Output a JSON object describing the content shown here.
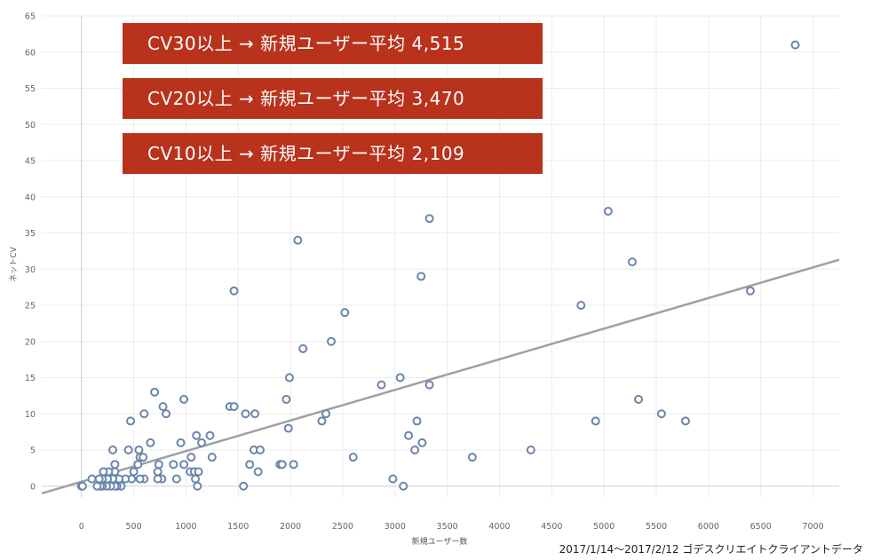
{
  "banners": [
    "CV30以上 → 新規ユーザー平均 4,515",
    "CV20以上 → 新規ユーザー平均 3,470",
    "CV10以上 → 新規ユーザー平均 2,109"
  ],
  "footer": "2017/1/14～2017/2/12 ゴデスクリエイトクライアントデータ",
  "colors": {
    "point": "#6b86ab",
    "trend": "#a0a0a0",
    "banner": "#b8321c",
    "grid": "#ececec"
  },
  "chart_data": {
    "type": "scatter",
    "xlabel": "新規ユーザー数",
    "ylabel": "ネットCV",
    "xlim": [
      -380,
      7250
    ],
    "ylim": [
      -1.5,
      65
    ],
    "x_ticks": [
      0,
      500,
      1000,
      1500,
      2000,
      2500,
      3000,
      3500,
      4000,
      4500,
      5000,
      5500,
      6000,
      6500,
      7000
    ],
    "y_ticks": [
      0,
      5,
      10,
      15,
      20,
      25,
      30,
      35,
      40,
      45,
      50,
      55,
      60,
      65
    ],
    "grid": true,
    "trendline": {
      "x1": -380,
      "y1": -1.0,
      "x2": 7250,
      "y2": 31.3
    },
    "points": [
      [
        6830,
        61
      ],
      [
        5040,
        38
      ],
      [
        3330,
        37
      ],
      [
        2070,
        34
      ],
      [
        5270,
        31
      ],
      [
        3250,
        29
      ],
      [
        1460,
        27
      ],
      [
        6400,
        27
      ],
      [
        4780,
        25
      ],
      [
        2520,
        24
      ],
      [
        2390,
        20
      ],
      [
        2120,
        19
      ],
      [
        5330,
        12
      ],
      [
        1420,
        11
      ],
      [
        1460,
        11
      ],
      [
        780,
        11
      ],
      [
        700,
        13
      ],
      [
        980,
        12
      ],
      [
        1960,
        12
      ],
      [
        2870,
        14
      ],
      [
        3050,
        15
      ],
      [
        3330,
        14
      ],
      [
        1990,
        15
      ],
      [
        5550,
        10
      ],
      [
        5780,
        9
      ],
      [
        4920,
        9
      ],
      [
        3210,
        9
      ],
      [
        2300,
        9
      ],
      [
        2340,
        10
      ],
      [
        1570,
        10
      ],
      [
        1660,
        10
      ],
      [
        810,
        10
      ],
      [
        600,
        10
      ],
      [
        470,
        9
      ],
      [
        1980,
        8
      ],
      [
        1100,
        7
      ],
      [
        1230,
        7
      ],
      [
        950,
        6
      ],
      [
        1150,
        6
      ],
      [
        660,
        6
      ],
      [
        3130,
        7
      ],
      [
        3260,
        6
      ],
      [
        3190,
        5
      ],
      [
        2600,
        4
      ],
      [
        3740,
        4
      ],
      [
        4300,
        5
      ],
      [
        1650,
        5
      ],
      [
        1710,
        5
      ],
      [
        1250,
        4
      ],
      [
        1050,
        4
      ],
      [
        550,
        5
      ],
      [
        450,
        5
      ],
      [
        300,
        5
      ],
      [
        1900,
        3
      ],
      [
        1920,
        3
      ],
      [
        2030,
        3
      ],
      [
        1610,
        3
      ],
      [
        880,
        3
      ],
      [
        980,
        3
      ],
      [
        740,
        3
      ],
      [
        540,
        3
      ],
      [
        320,
        3
      ],
      [
        560,
        4
      ],
      [
        590,
        4
      ],
      [
        1690,
        2
      ],
      [
        1040,
        2
      ],
      [
        1080,
        2
      ],
      [
        1120,
        2
      ],
      [
        730,
        2
      ],
      [
        500,
        2
      ],
      [
        320,
        2
      ],
      [
        260,
        2
      ],
      [
        210,
        2
      ],
      [
        1090,
        1
      ],
      [
        910,
        1
      ],
      [
        770,
        1
      ],
      [
        730,
        1
      ],
      [
        600,
        1
      ],
      [
        560,
        1
      ],
      [
        480,
        1
      ],
      [
        420,
        1
      ],
      [
        360,
        1
      ],
      [
        300,
        1
      ],
      [
        250,
        1
      ],
      [
        200,
        1
      ],
      [
        170,
        1
      ],
      [
        100,
        1
      ],
      [
        2980,
        1
      ],
      [
        1110,
        0
      ],
      [
        1550,
        0
      ],
      [
        3080,
        0
      ],
      [
        380,
        0
      ],
      [
        340,
        0
      ],
      [
        320,
        0
      ],
      [
        280,
        0
      ],
      [
        240,
        0
      ],
      [
        200,
        0
      ],
      [
        180,
        0
      ],
      [
        150,
        0
      ],
      [
        0,
        0
      ],
      [
        10,
        0
      ]
    ]
  }
}
